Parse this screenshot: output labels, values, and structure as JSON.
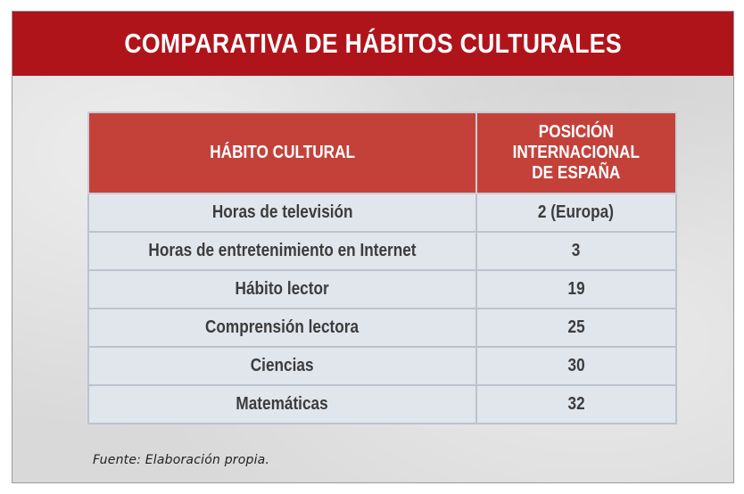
{
  "header": {
    "title": "COMPARATIVA DE HÁBITOS CULTURALES"
  },
  "table": {
    "columns": [
      "HÁBITO CULTURAL",
      "POSICIÓN INTERNACIONAL DE ESPAÑA"
    ],
    "column_lines": {
      "position": [
        "POSICIÓN",
        "INTERNACIONAL",
        "DE ESPAÑA"
      ]
    },
    "rows": [
      {
        "habit": "Horas de televisión",
        "position": "2 (Europa)"
      },
      {
        "habit": "Horas de entretenimiento en Internet",
        "position": "3"
      },
      {
        "habit": "Hábito lector",
        "position": "19"
      },
      {
        "habit": "Comprensión lectora",
        "position": "25"
      },
      {
        "habit": "Ciencias",
        "position": "30"
      },
      {
        "habit": "Matemáticas",
        "position": "32"
      }
    ]
  },
  "footer": {
    "source": "Fuente: Elaboración propia."
  },
  "colors": {
    "header_bar": "#b0141b",
    "table_header": "#c4413a",
    "table_cell": "#e1e5ec",
    "card_background": "#d9d9d9"
  }
}
